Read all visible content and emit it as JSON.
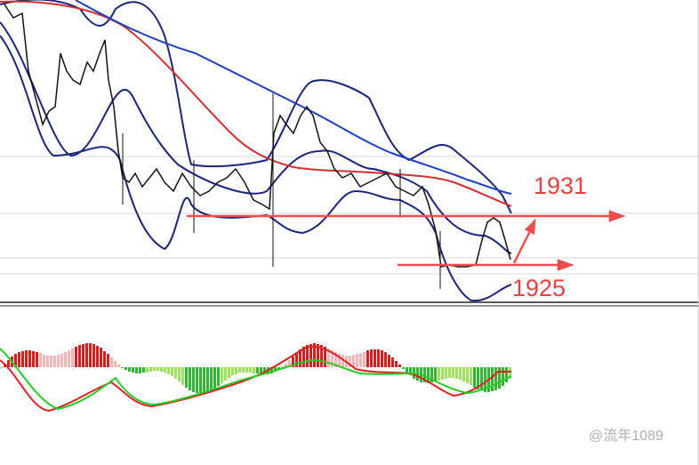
{
  "annotations": {
    "upper_level": "1931",
    "lower_level": "1925"
  },
  "watermark": "@流年1089"
}
